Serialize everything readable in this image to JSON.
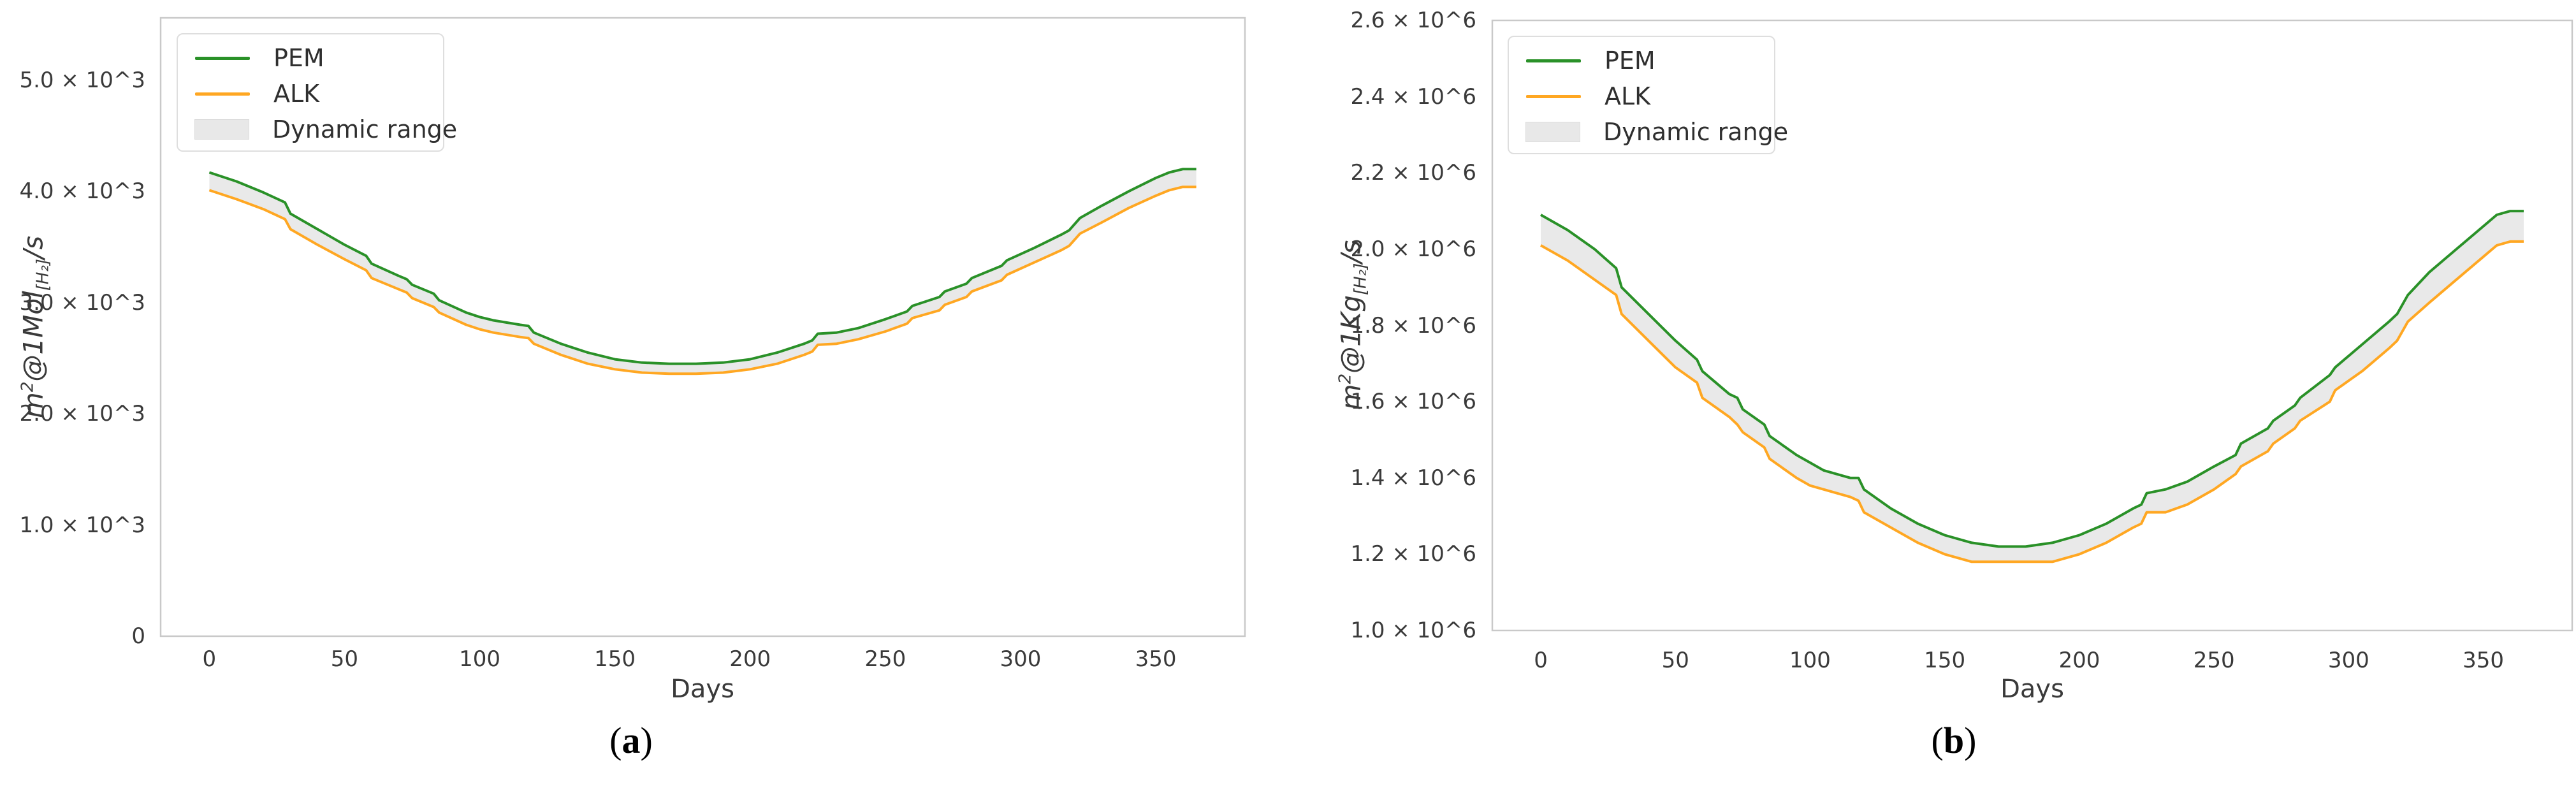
{
  "figure": {
    "background": "#ffffff",
    "captions": {
      "a": "(a)",
      "b": "(b)"
    }
  },
  "colors": {
    "pem": "#2a9128",
    "alk": "#ffa722",
    "band": "#e9e9e9",
    "axis_border": "#c9c9c9",
    "tick_text": "#3a3a3a"
  },
  "chart_data": [
    {
      "id": "a",
      "type": "line",
      "caption_parts": [
        {
          "type": "text",
          "value": "("
        },
        {
          "type": "bold",
          "value": "a"
        },
        {
          "type": "text",
          "value": ")"
        }
      ],
      "x_label": "Days",
      "y_label_text": "m²@1Mol[H₂]/s",
      "y_label_parts": [
        {
          "type": "text",
          "value": "m"
        },
        {
          "type": "sup",
          "value": "2"
        },
        {
          "type": "text",
          "value": "@1Mol"
        },
        {
          "type": "sub",
          "value": "[H₂]"
        },
        {
          "type": "text",
          "value": "/s"
        }
      ],
      "xlim": [
        -18,
        383
      ],
      "ylim": [
        0,
        5.56
      ],
      "grid": false,
      "legend_position": "upper-left",
      "x_ticks": [
        {
          "v": 0,
          "label": "0"
        },
        {
          "v": 50,
          "label": "50"
        },
        {
          "v": 100,
          "label": "100"
        },
        {
          "v": 150,
          "label": "150"
        },
        {
          "v": 200,
          "label": "200"
        },
        {
          "v": 250,
          "label": "250"
        },
        {
          "v": 300,
          "label": "300"
        },
        {
          "v": 350,
          "label": "350"
        }
      ],
      "y_ticks": [
        {
          "v": 0,
          "label": "0"
        },
        {
          "v": 1,
          "label": "1.0 × 10^3"
        },
        {
          "v": 2,
          "label": "2.0 × 10^3"
        },
        {
          "v": 3,
          "label": "3.0 × 10^3"
        },
        {
          "v": 4,
          "label": "4.0 × 10^3"
        },
        {
          "v": 5,
          "label": "5.0 × 10^3"
        }
      ],
      "legend": [
        {
          "name": "PEM",
          "swatch": "line",
          "color": "#2a9128"
        },
        {
          "name": "ALK",
          "swatch": "line",
          "color": "#ffa722"
        },
        {
          "name": "Dynamic range",
          "swatch": "patch",
          "color": "#e9e9e9"
        }
      ],
      "band": {
        "name": "Dynamic range",
        "between": [
          "PEM",
          "ALK"
        ],
        "color": "#e9e9e9"
      },
      "days": [
        0,
        10,
        20,
        28,
        30,
        40,
        50,
        58,
        60,
        70,
        73,
        75,
        83,
        85,
        95,
        100,
        105,
        110,
        115,
        118,
        120,
        130,
        140,
        150,
        160,
        170,
        180,
        190,
        200,
        210,
        220,
        223,
        225,
        232,
        240,
        250,
        258,
        260,
        270,
        272,
        280,
        282,
        293,
        295,
        305,
        315,
        318,
        322,
        330,
        340,
        350,
        355,
        360,
        365
      ],
      "series": [
        {
          "name": "PEM",
          "color": "#2a9128",
          "unit": "10^3 Mol[H2]/s",
          "values": [
            4.17,
            4.09,
            3.99,
            3.9,
            3.8,
            3.66,
            3.52,
            3.42,
            3.35,
            3.24,
            3.21,
            3.16,
            3.08,
            3.02,
            2.91,
            2.87,
            2.84,
            2.82,
            2.8,
            2.79,
            2.73,
            2.63,
            2.55,
            2.49,
            2.46,
            2.45,
            2.45,
            2.46,
            2.49,
            2.55,
            2.63,
            2.66,
            2.72,
            2.73,
            2.77,
            2.85,
            2.92,
            2.97,
            3.05,
            3.1,
            3.17,
            3.22,
            3.33,
            3.38,
            3.49,
            3.61,
            3.65,
            3.76,
            3.87,
            4.0,
            4.12,
            4.17,
            4.2,
            4.2
          ]
        },
        {
          "name": "ALK",
          "color": "#ffa722",
          "unit": "10^3 Mol[H2]/s",
          "values": [
            4.01,
            3.93,
            3.84,
            3.75,
            3.66,
            3.52,
            3.39,
            3.29,
            3.22,
            3.12,
            3.09,
            3.04,
            2.96,
            2.91,
            2.8,
            2.76,
            2.73,
            2.71,
            2.69,
            2.68,
            2.63,
            2.53,
            2.45,
            2.4,
            2.37,
            2.36,
            2.36,
            2.37,
            2.4,
            2.45,
            2.53,
            2.56,
            2.62,
            2.63,
            2.67,
            2.74,
            2.81,
            2.86,
            2.93,
            2.98,
            3.05,
            3.1,
            3.2,
            3.25,
            3.36,
            3.47,
            3.51,
            3.62,
            3.72,
            3.85,
            3.96,
            4.01,
            4.04,
            4.04
          ]
        }
      ]
    },
    {
      "id": "b",
      "type": "line",
      "caption_parts": [
        {
          "type": "text",
          "value": "("
        },
        {
          "type": "bold",
          "value": "b"
        },
        {
          "type": "text",
          "value": ")"
        }
      ],
      "x_label": "Days",
      "y_label_text": "m²@1Kg[H₂]/s",
      "y_label_parts": [
        {
          "type": "text",
          "value": "m"
        },
        {
          "type": "sup",
          "value": "2"
        },
        {
          "type": "text",
          "value": "@1Kg"
        },
        {
          "type": "sub",
          "value": "[H₂]"
        },
        {
          "type": "text",
          "value": "/s"
        }
      ],
      "xlim": [
        -18,
        383
      ],
      "ylim": [
        1.0,
        2.6
      ],
      "grid": false,
      "legend_position": "upper-left",
      "x_ticks": [
        {
          "v": 0,
          "label": "0"
        },
        {
          "v": 50,
          "label": "50"
        },
        {
          "v": 100,
          "label": "100"
        },
        {
          "v": 150,
          "label": "150"
        },
        {
          "v": 200,
          "label": "200"
        },
        {
          "v": 250,
          "label": "250"
        },
        {
          "v": 300,
          "label": "300"
        },
        {
          "v": 350,
          "label": "350"
        }
      ],
      "y_ticks": [
        {
          "v": 1.0,
          "label": "1.0 × 10^6"
        },
        {
          "v": 1.2,
          "label": "1.2 × 10^6"
        },
        {
          "v": 1.4,
          "label": "1.4 × 10^6"
        },
        {
          "v": 1.6,
          "label": "1.6 × 10^6"
        },
        {
          "v": 1.8,
          "label": "1.8 × 10^6"
        },
        {
          "v": 2.0,
          "label": "2.0 × 10^6"
        },
        {
          "v": 2.2,
          "label": "2.2 × 10^6"
        },
        {
          "v": 2.4,
          "label": "2.4 × 10^6"
        },
        {
          "v": 2.6,
          "label": "2.6 × 10^6"
        }
      ],
      "legend": [
        {
          "name": "PEM",
          "swatch": "line",
          "color": "#2a9128"
        },
        {
          "name": "ALK",
          "swatch": "line",
          "color": "#ffa722"
        },
        {
          "name": "Dynamic range",
          "swatch": "patch",
          "color": "#e9e9e9"
        }
      ],
      "band": {
        "name": "Dynamic range",
        "between": [
          "PEM",
          "ALK"
        ],
        "color": "#e9e9e9"
      },
      "days": [
        0,
        10,
        20,
        28,
        30,
        40,
        50,
        58,
        60,
        70,
        73,
        75,
        83,
        85,
        95,
        100,
        105,
        110,
        115,
        118,
        120,
        130,
        140,
        150,
        160,
        170,
        180,
        190,
        200,
        210,
        220,
        223,
        225,
        232,
        240,
        250,
        258,
        260,
        270,
        272,
        280,
        282,
        293,
        295,
        305,
        315,
        318,
        322,
        330,
        340,
        350,
        355,
        360,
        365
      ],
      "series": [
        {
          "name": "PEM",
          "color": "#2a9128",
          "unit": "10^6 Kg[H2]/s",
          "values": [
            2.09,
            2.05,
            2.0,
            1.95,
            1.9,
            1.83,
            1.76,
            1.71,
            1.68,
            1.62,
            1.61,
            1.58,
            1.54,
            1.51,
            1.46,
            1.44,
            1.42,
            1.41,
            1.4,
            1.4,
            1.37,
            1.32,
            1.28,
            1.25,
            1.23,
            1.22,
            1.22,
            1.23,
            1.25,
            1.28,
            1.32,
            1.33,
            1.36,
            1.37,
            1.39,
            1.43,
            1.46,
            1.49,
            1.53,
            1.55,
            1.59,
            1.61,
            1.67,
            1.69,
            1.75,
            1.81,
            1.83,
            1.88,
            1.94,
            2.0,
            2.06,
            2.09,
            2.1,
            2.1
          ]
        },
        {
          "name": "ALK",
          "color": "#ffa722",
          "unit": "10^6 Kg[H2]/s",
          "values": [
            2.01,
            1.97,
            1.92,
            1.88,
            1.83,
            1.76,
            1.69,
            1.65,
            1.61,
            1.56,
            1.54,
            1.52,
            1.48,
            1.45,
            1.4,
            1.38,
            1.37,
            1.36,
            1.35,
            1.34,
            1.31,
            1.27,
            1.23,
            1.2,
            1.18,
            1.18,
            1.18,
            1.18,
            1.2,
            1.23,
            1.27,
            1.28,
            1.31,
            1.31,
            1.33,
            1.37,
            1.41,
            1.43,
            1.47,
            1.49,
            1.53,
            1.55,
            1.6,
            1.63,
            1.68,
            1.74,
            1.76,
            1.81,
            1.86,
            1.92,
            1.98,
            2.01,
            2.02,
            2.02
          ]
        }
      ]
    }
  ]
}
